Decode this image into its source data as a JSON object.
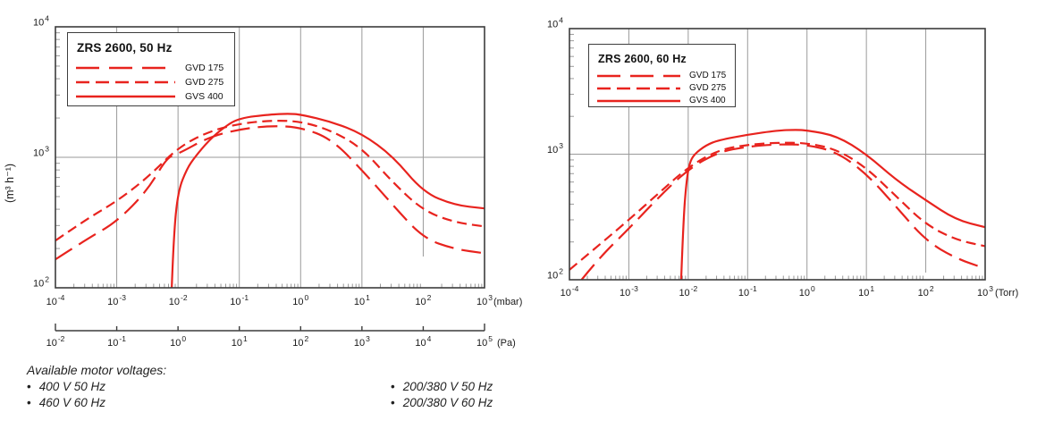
{
  "colors": {
    "curve_red": "#e8231e",
    "grid": "#9a9a9a",
    "frame": "#3c3c3c",
    "text": "#1a1a1a"
  },
  "footer": {
    "title": "Available motor voltages:",
    "bullet": "•",
    "columns": [
      {
        "items": [
          "400 V 50 Hz",
          "460 V 60 Hz"
        ]
      },
      {
        "items": [
          "200/380 V 50 Hz",
          "200/380 V 60 Hz"
        ]
      }
    ]
  },
  "chart_data": [
    {
      "type": "line",
      "title": "ZRS 2600, 50 Hz",
      "x_axis": {
        "scale": "log",
        "unit": "(mbar)",
        "tick_exponents": [
          -4,
          -3,
          -2,
          -1,
          0,
          1,
          2,
          3
        ],
        "range": [
          0.0001,
          1000
        ]
      },
      "secondary_x_axis": {
        "scale": "log",
        "unit": "(Pa)",
        "tick_exponents": [
          -2,
          -1,
          0,
          1,
          2,
          3,
          4,
          5
        ],
        "range": [
          0.01,
          100000
        ]
      },
      "y_axis": {
        "scale": "log",
        "unit": "(m³ h⁻¹)",
        "tick_exponents": [
          2,
          3,
          4
        ],
        "range": [
          100,
          10000
        ]
      },
      "legend": [
        {
          "label": "GVD 175",
          "style": "long-dash"
        },
        {
          "label": "GVD 275",
          "style": "medium-dash"
        },
        {
          "label": "GVS 400",
          "style": "solid"
        }
      ],
      "series": [
        {
          "name": "GVD 175",
          "style": "long-dash",
          "points": [
            [
              0.0001,
              165
            ],
            [
              0.00032,
              235
            ],
            [
              0.001,
              320
            ],
            [
              0.0032,
              560
            ],
            [
              0.0066,
              1000
            ],
            [
              0.01,
              1060
            ],
            [
              0.032,
              1430
            ],
            [
              0.1,
              1640
            ],
            [
              0.32,
              1745
            ],
            [
              1,
              1700
            ],
            [
              3.2,
              1380
            ],
            [
              10,
              800
            ],
            [
              32,
              430
            ],
            [
              100,
              240
            ],
            [
              320,
              198
            ],
            [
              1000,
              184
            ]
          ]
        },
        {
          "name": "GVD 275",
          "style": "medium-dash",
          "points": [
            [
              0.0001,
              230
            ],
            [
              0.00032,
              335
            ],
            [
              0.001,
              460
            ],
            [
              0.0032,
              700
            ],
            [
              0.01,
              1190
            ],
            [
              0.032,
              1580
            ],
            [
              0.1,
              1810
            ],
            [
              0.32,
              1915
            ],
            [
              1,
              1890
            ],
            [
              3.2,
              1600
            ],
            [
              10,
              1180
            ],
            [
              32,
              640
            ],
            [
              100,
              390
            ],
            [
              320,
              318
            ],
            [
              1000,
              295
            ]
          ]
        },
        {
          "name": "GVS 400",
          "style": "solid",
          "points": [
            [
              0.0079,
              100
            ],
            [
              0.0085,
              250
            ],
            [
              0.01,
              550
            ],
            [
              0.014,
              820
            ],
            [
              0.019,
              1010
            ],
            [
              0.032,
              1350
            ],
            [
              0.056,
              1700
            ],
            [
              0.1,
              2000
            ],
            [
              0.32,
              2130
            ],
            [
              0.63,
              2160
            ],
            [
              1,
              2130
            ],
            [
              3.2,
              1870
            ],
            [
              10,
              1520
            ],
            [
              32,
              1020
            ],
            [
              100,
              540
            ],
            [
              320,
              430
            ],
            [
              1000,
              406
            ]
          ]
        }
      ]
    },
    {
      "type": "line",
      "title": "ZRS 2600, 60 Hz",
      "x_axis": {
        "scale": "log",
        "unit": "(Torr)",
        "tick_exponents": [
          -4,
          -3,
          -2,
          -1,
          0,
          1,
          2,
          3
        ],
        "range": [
          0.0001,
          1000
        ]
      },
      "y_axis": {
        "scale": "log",
        "unit": "",
        "tick_exponents": [
          2,
          3,
          4
        ],
        "range": [
          100,
          10000
        ]
      },
      "legend": [
        {
          "label": "GVD 175",
          "style": "long-dash"
        },
        {
          "label": "GVD 275",
          "style": "medium-dash"
        },
        {
          "label": "GVS 400",
          "style": "solid"
        }
      ],
      "series": [
        {
          "name": "GVD 175",
          "style": "long-dash",
          "points": [
            [
              0.00016,
              100
            ],
            [
              0.00032,
              150
            ],
            [
              0.001,
              255
            ],
            [
              0.0032,
              455
            ],
            [
              0.01,
              760
            ],
            [
              0.032,
              1040
            ],
            [
              0.1,
              1150
            ],
            [
              0.32,
              1200
            ],
            [
              1,
              1190
            ],
            [
              3.2,
              1040
            ],
            [
              10,
              700
            ],
            [
              32,
              380
            ],
            [
              100,
              205
            ],
            [
              320,
              148
            ],
            [
              1000,
              123
            ]
          ]
        },
        {
          "name": "GVD 275",
          "style": "medium-dash",
          "points": [
            [
              0.0001,
              120
            ],
            [
              0.00032,
              190
            ],
            [
              0.001,
              300
            ],
            [
              0.0032,
              490
            ],
            [
              0.01,
              790
            ],
            [
              0.032,
              1080
            ],
            [
              0.1,
              1190
            ],
            [
              0.32,
              1235
            ],
            [
              1,
              1230
            ],
            [
              3.2,
              1090
            ],
            [
              10,
              780
            ],
            [
              32,
              460
            ],
            [
              100,
              275
            ],
            [
              320,
              208
            ],
            [
              1000,
              185
            ]
          ]
        },
        {
          "name": "GVS 400",
          "style": "solid",
          "points": [
            [
              0.0076,
              100
            ],
            [
              0.0083,
              300
            ],
            [
              0.0093,
              600
            ],
            [
              0.0105,
              850
            ],
            [
              0.0126,
              1000
            ],
            [
              0.02,
              1180
            ],
            [
              0.032,
              1290
            ],
            [
              0.1,
              1430
            ],
            [
              0.32,
              1545
            ],
            [
              0.63,
              1565
            ],
            [
              1,
              1550
            ],
            [
              3.2,
              1400
            ],
            [
              10,
              1000
            ],
            [
              32,
              620
            ],
            [
              100,
              430
            ],
            [
              320,
              300
            ],
            [
              1000,
              262
            ]
          ]
        }
      ]
    }
  ]
}
